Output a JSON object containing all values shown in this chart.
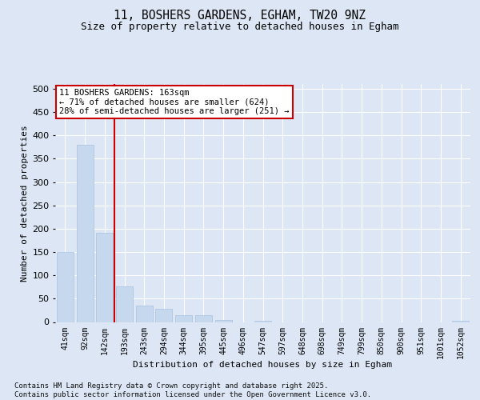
{
  "title1": "11, BOSHERS GARDENS, EGHAM, TW20 9NZ",
  "title2": "Size of property relative to detached houses in Egham",
  "xlabel": "Distribution of detached houses by size in Egham",
  "ylabel": "Number of detached properties",
  "categories": [
    "41sqm",
    "92sqm",
    "142sqm",
    "193sqm",
    "243sqm",
    "294sqm",
    "344sqm",
    "395sqm",
    "445sqm",
    "496sqm",
    "547sqm",
    "597sqm",
    "648sqm",
    "698sqm",
    "749sqm",
    "799sqm",
    "850sqm",
    "900sqm",
    "951sqm",
    "1001sqm",
    "1052sqm"
  ],
  "values": [
    150,
    380,
    192,
    77,
    36,
    28,
    15,
    14,
    5,
    0,
    2,
    0,
    0,
    0,
    0,
    0,
    0,
    0,
    0,
    0,
    3
  ],
  "bar_color": "#c5d8ee",
  "bar_edge_color": "#a8c0de",
  "vline_color": "#cc0000",
  "annotation_title": "11 BOSHERS GARDENS: 163sqm",
  "annotation_line1": "← 71% of detached houses are smaller (624)",
  "annotation_line2": "28% of semi-detached houses are larger (251) →",
  "ylim_max": 510,
  "yticks": [
    0,
    50,
    100,
    150,
    200,
    250,
    300,
    350,
    400,
    450,
    500
  ],
  "background_color": "#dce6f5",
  "footer1": "Contains HM Land Registry data © Crown copyright and database right 2025.",
  "footer2": "Contains public sector information licensed under the Open Government Licence v3.0."
}
